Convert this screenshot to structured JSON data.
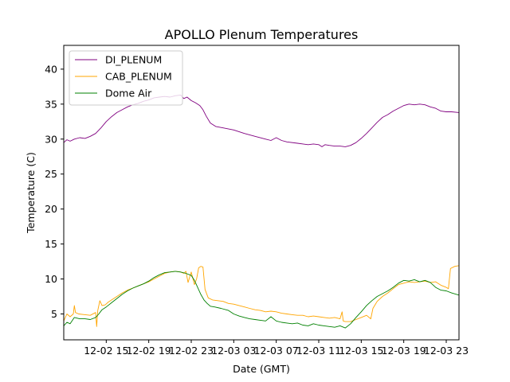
{
  "chart_data": {
    "type": "line",
    "title": "APOLLO Plenum Temperatures",
    "xlabel": "Date (GMT)",
    "ylabel": "Temperature (C)",
    "xlim": [
      0,
      37.2
    ],
    "ylim": [
      1.3,
      43.4
    ],
    "grid": false,
    "legend_position": "top-left",
    "x_ticks": [
      {
        "value": 4,
        "label": "12-02 15"
      },
      {
        "value": 8,
        "label": "12-02 19"
      },
      {
        "value": 12,
        "label": "12-02 23"
      },
      {
        "value": 16,
        "label": "12-03 03"
      },
      {
        "value": 20,
        "label": "12-03 07"
      },
      {
        "value": 24,
        "label": "12-03 11"
      },
      {
        "value": 28,
        "label": "12-03 15"
      },
      {
        "value": 32,
        "label": "12-03 19"
      },
      {
        "value": 36,
        "label": "12-03 23"
      }
    ],
    "y_ticks": [
      {
        "value": 5,
        "label": "5"
      },
      {
        "value": 10,
        "label": "10"
      },
      {
        "value": 15,
        "label": "15"
      },
      {
        "value": 20,
        "label": "20"
      },
      {
        "value": 25,
        "label": "25"
      },
      {
        "value": 30,
        "label": "30"
      },
      {
        "value": 35,
        "label": "35"
      },
      {
        "value": 40,
        "label": "40"
      }
    ],
    "series": [
      {
        "name": "DI_PLENUM",
        "color": "#800080",
        "x": [
          0,
          0.3,
          0.6,
          1,
          1.5,
          2,
          2.5,
          3,
          3.5,
          4,
          4.5,
          5,
          5.5,
          6,
          6.5,
          7,
          7.5,
          8,
          8.5,
          9,
          9.5,
          10,
          10.5,
          11,
          11.3,
          11.6,
          12,
          12.4,
          12.8,
          13.1,
          13.4,
          13.8,
          14.3,
          15,
          16,
          17,
          18,
          19,
          19.5,
          20,
          20.5,
          21,
          22,
          23,
          23.5,
          24,
          24.3,
          24.6,
          25,
          25.5,
          26,
          26.5,
          27,
          27.5,
          28,
          28.5,
          29,
          29.5,
          30,
          30.5,
          31,
          31.5,
          32,
          32.5,
          33,
          33.5,
          34,
          34.5,
          35,
          35.5,
          36,
          36.5,
          37.2
        ],
        "y": [
          29.5,
          29.9,
          29.7,
          30,
          30.2,
          30.1,
          30.4,
          30.8,
          31.6,
          32.5,
          33.2,
          33.8,
          34.2,
          34.6,
          34.9,
          35.1,
          35.4,
          35.6,
          35.9,
          36.0,
          36.1,
          36.0,
          36.2,
          36.3,
          35.8,
          36.0,
          35.5,
          35.2,
          34.8,
          34.2,
          33.3,
          32.3,
          31.8,
          31.6,
          31.3,
          30.8,
          30.4,
          30.0,
          29.8,
          30.2,
          29.8,
          29.6,
          29.4,
          29.2,
          29.3,
          29.2,
          28.9,
          29.2,
          29.1,
          29.0,
          29.0,
          28.9,
          29.1,
          29.5,
          30.1,
          30.8,
          31.6,
          32.4,
          33.1,
          33.5,
          34.0,
          34.4,
          34.8,
          35.0,
          34.9,
          35.0,
          34.9,
          34.6,
          34.4,
          34.0,
          33.9,
          33.9,
          33.8
        ]
      },
      {
        "name": "CAB_PLENUM",
        "color": "#ffa500",
        "x": [
          0,
          0.3,
          0.6,
          0.9,
          1,
          1.1,
          1.4,
          2,
          2.5,
          3,
          3.1,
          3.2,
          3.4,
          3.6,
          3.9,
          4.2,
          4.5,
          5,
          5.5,
          6,
          6.5,
          7,
          7.5,
          8,
          8.5,
          9,
          9.5,
          10,
          10.5,
          11,
          11.3,
          11.5,
          11.7,
          12,
          12.3,
          12.5,
          12.7,
          12.9,
          13.1,
          13.3,
          13.6,
          14,
          14.5,
          15,
          15.5,
          16,
          16.5,
          17,
          17.5,
          18,
          18.5,
          19,
          19.5,
          20,
          20.5,
          21,
          21.5,
          22,
          22.5,
          23,
          23.5,
          24,
          24.5,
          25,
          25.5,
          26,
          26.2,
          26.3,
          26.5,
          27,
          27.5,
          28,
          28.5,
          28.9,
          29.1,
          29.5,
          30,
          30.5,
          31,
          31.5,
          32,
          32.5,
          33,
          33.5,
          34,
          34.5,
          35,
          35.5,
          36,
          36.2,
          36.4,
          36.8,
          37.2
        ],
        "y": [
          4.0,
          5.0,
          4.6,
          5.0,
          6.2,
          5.2,
          5.0,
          4.9,
          4.8,
          5.2,
          3.2,
          5.5,
          6.9,
          6.2,
          6.3,
          6.7,
          7.0,
          7.5,
          8.0,
          8.4,
          8.7,
          9.0,
          9.3,
          9.6,
          10.0,
          10.4,
          10.8,
          11.0,
          11.1,
          11.0,
          10.8,
          11.1,
          9.5,
          11.0,
          9.2,
          10.0,
          11.6,
          11.8,
          11.7,
          8.5,
          7.3,
          7.0,
          6.9,
          6.8,
          6.5,
          6.4,
          6.2,
          6.0,
          5.8,
          5.6,
          5.5,
          5.3,
          5.4,
          5.3,
          5.1,
          5.0,
          4.9,
          4.8,
          4.8,
          4.6,
          4.7,
          4.6,
          4.5,
          4.4,
          4.5,
          4.3,
          5.3,
          4.0,
          3.9,
          3.9,
          4.2,
          4.5,
          4.8,
          4.3,
          5.8,
          6.8,
          7.5,
          8.0,
          8.6,
          9.2,
          9.4,
          9.6,
          9.5,
          9.6,
          9.7,
          9.5,
          9.6,
          9.1,
          8.8,
          8.6,
          11.5,
          11.8,
          11.9
        ]
      },
      {
        "name": "Dome Air",
        "color": "#008000",
        "x": [
          0,
          0.3,
          0.6,
          1,
          1.5,
          2,
          2.5,
          3,
          3.3,
          3.6,
          4,
          4.5,
          5,
          5.5,
          6,
          6.5,
          7,
          7.5,
          8,
          8.5,
          9,
          9.5,
          10,
          10.5,
          11,
          11.5,
          12,
          12.3,
          12.6,
          12.9,
          13.2,
          13.5,
          13.8,
          14.2,
          14.8,
          15.5,
          16,
          16.5,
          17,
          17.5,
          18,
          18.5,
          19,
          19.5,
          20,
          20.5,
          21,
          21.5,
          22,
          22.5,
          23,
          23.5,
          24,
          24.5,
          25,
          25.5,
          26,
          26.5,
          27,
          27.5,
          28,
          28.5,
          29,
          29.5,
          30,
          30.5,
          31,
          31.5,
          32,
          32.5,
          33,
          33.5,
          34,
          34.5,
          35,
          35.5,
          36,
          36.5,
          37.2
        ],
        "y": [
          3.3,
          3.8,
          3.6,
          4.5,
          4.3,
          4.3,
          4.2,
          4.5,
          5.0,
          5.6,
          6.0,
          6.6,
          7.2,
          7.8,
          8.3,
          8.7,
          9.0,
          9.3,
          9.7,
          10.2,
          10.6,
          10.9,
          11.0,
          11.1,
          11.0,
          10.8,
          10.5,
          9.8,
          8.8,
          7.8,
          7.0,
          6.5,
          6.1,
          6.0,
          5.8,
          5.5,
          5.0,
          4.7,
          4.5,
          4.3,
          4.2,
          4.1,
          4.0,
          4.6,
          4.0,
          3.8,
          3.7,
          3.6,
          3.7,
          3.4,
          3.3,
          3.6,
          3.4,
          3.3,
          3.2,
          3.1,
          3.3,
          3.0,
          3.6,
          4.5,
          5.3,
          6.2,
          6.9,
          7.5,
          7.9,
          8.3,
          8.8,
          9.4,
          9.8,
          9.7,
          9.9,
          9.6,
          9.8,
          9.5,
          8.8,
          8.4,
          8.3,
          8.0,
          7.7
        ]
      }
    ]
  }
}
